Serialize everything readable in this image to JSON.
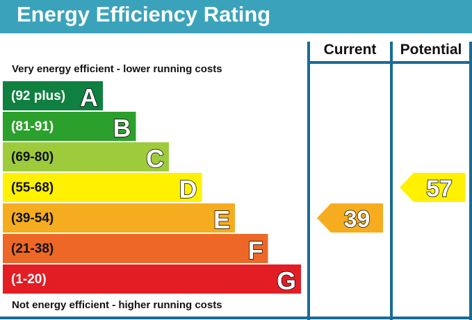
{
  "title": "Energy Efficiency Rating",
  "columns": {
    "current": "Current",
    "potential": "Potential"
  },
  "top_note": "Very energy efficient - lower running costs",
  "bottom_note": "Not energy efficient - higher running costs",
  "colors": {
    "header_bg": "#3aa3bb",
    "border": "#1a6b94",
    "A": "#0f8040",
    "B": "#2ca02c",
    "C": "#9dcb3c",
    "D": "#fff100",
    "E": "#f5ad1f",
    "F": "#ed6826",
    "G": "#e31d24"
  },
  "chart_data": {
    "type": "bar",
    "categories": [
      "A",
      "B",
      "C",
      "D",
      "E",
      "F",
      "G"
    ],
    "bands": [
      {
        "letter": "A",
        "range": "(92 plus)",
        "min": 92,
        "max": null,
        "color": "#0f8040"
      },
      {
        "letter": "B",
        "range": "(81-91)",
        "min": 81,
        "max": 91,
        "color": "#2ca02c"
      },
      {
        "letter": "C",
        "range": "(69-80)",
        "min": 69,
        "max": 80,
        "color": "#9dcb3c"
      },
      {
        "letter": "D",
        "range": "(55-68)",
        "min": 55,
        "max": 68,
        "color": "#fff100"
      },
      {
        "letter": "E",
        "range": "(39-54)",
        "min": 39,
        "max": 54,
        "color": "#f5ad1f"
      },
      {
        "letter": "F",
        "range": "(21-38)",
        "min": 21,
        "max": 38,
        "color": "#ed6826"
      },
      {
        "letter": "G",
        "range": "(1-20)",
        "min": 1,
        "max": 20,
        "color": "#e31d24"
      }
    ],
    "current": {
      "value": 39,
      "band": "E"
    },
    "potential": {
      "value": 57,
      "band": "D"
    }
  }
}
